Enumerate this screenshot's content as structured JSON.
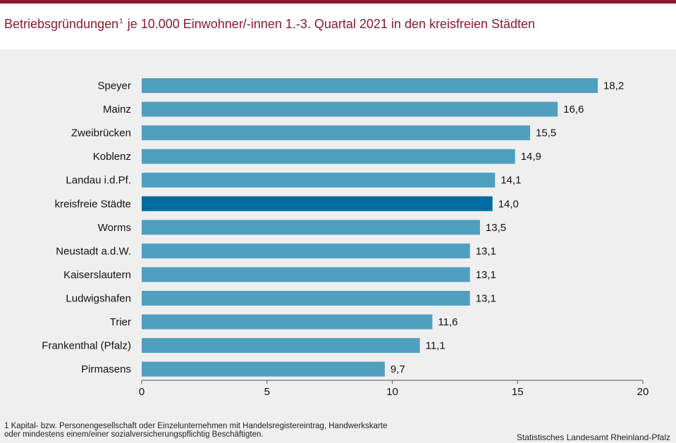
{
  "header": {
    "title_prefix": "Betriebsgründungen",
    "title_sup": "1",
    "title_suffix": " je 10.000 Einwohner/-innen 1.-3. Quartal 2021  in den kreisfreien Städten"
  },
  "chart_data": {
    "type": "bar",
    "orientation": "horizontal",
    "categories": [
      "Speyer",
      "Mainz",
      "Zweibrücken",
      "Koblenz",
      "Landau i.d.Pf.",
      "kreisfreie Städte",
      "Worms",
      "Neustadt a.d.W.",
      "Kaiserslautern",
      "Ludwigshafen",
      "Trier",
      "Frankenthal (Pfalz)",
      "Pirmasens"
    ],
    "values": [
      18.2,
      16.6,
      15.5,
      14.9,
      14.1,
      14.0,
      13.5,
      13.1,
      13.1,
      13.1,
      11.6,
      11.1,
      9.7
    ],
    "value_labels": [
      "18,2",
      "16,6",
      "15,5",
      "14,9",
      "14,1",
      "14,0",
      "13,5",
      "13,1",
      "13,1",
      "13,1",
      "11,6",
      "11,1",
      "9,7"
    ],
    "highlight": "kreisfreie Städte",
    "xlim": [
      0,
      20
    ],
    "xticks": [
      0,
      5,
      10,
      15,
      20
    ],
    "title": "Betriebsgründungen je 10.000 Einwohner/-innen 1.-3. Quartal 2021 in den kreisfreien Städten",
    "xlabel": "",
    "ylabel": "",
    "grid": false,
    "colors": {
      "bar": "#4f9fbf",
      "highlight": "#006b9e"
    }
  },
  "footer": {
    "footnote": "1 Kapital- bzw. Personengesellschaft oder Einzelunternehmen mit Handelsregistereintrag, Handwerkskarte oder mindestens einem/einer sozialversicherungspflichtig Beschäftigten.",
    "source": "Statistisches Landesamt Rheinland-Pfalz"
  }
}
